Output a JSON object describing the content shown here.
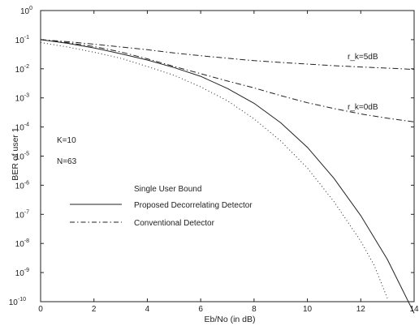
{
  "chart_data": {
    "type": "line",
    "title": "",
    "xlabel": "Eb/No (in dB)",
    "ylabel": "BER of user 1",
    "xlim": [
      0,
      14
    ],
    "ylim_exp": [
      -10,
      0
    ],
    "yscale": "log",
    "grid": false,
    "legend_placement": "center-left",
    "x_ticks": [
      "0",
      "2",
      "4",
      "6",
      "8",
      "10",
      "12",
      "14"
    ],
    "y_tick_exponents": [
      0,
      -1,
      -2,
      -3,
      -4,
      -5,
      -6,
      -7,
      -8,
      -9,
      -10
    ],
    "series": [
      {
        "name": "Single User Bound",
        "style": "dotted",
        "x": [
          0,
          1,
          2,
          3,
          4,
          5,
          6,
          7,
          8,
          9,
          10,
          11,
          12,
          12.5,
          13
        ],
        "y": [
          0.08,
          0.056,
          0.037,
          0.023,
          0.012,
          0.006,
          0.0024,
          0.0008,
          0.00019,
          3.3e-05,
          3.9e-06,
          2.7e-07,
          1.2e-08,
          1.8e-09,
          1.3e-10
        ]
      },
      {
        "name": "Proposed Decorrelating Detector",
        "style": "solid",
        "x": [
          0,
          1,
          2,
          3,
          4,
          5,
          6,
          7,
          8,
          9,
          10,
          11,
          12,
          13,
          14
        ],
        "y": [
          0.1,
          0.075,
          0.052,
          0.033,
          0.02,
          0.011,
          0.0055,
          0.0021,
          0.00065,
          0.00014,
          2e-05,
          1.7e-06,
          9e-08,
          2.8e-09,
          4e-11
        ]
      },
      {
        "name": "Conventional Detector (r_k=0dB)",
        "style": "dashdot",
        "x": [
          0,
          1,
          2,
          3,
          4,
          5,
          6,
          7,
          8,
          9,
          10,
          11,
          12,
          13,
          14
        ],
        "y": [
          0.1,
          0.079,
          0.058,
          0.038,
          0.022,
          0.012,
          0.0068,
          0.0038,
          0.0022,
          0.0012,
          0.00068,
          0.00043,
          0.00028,
          0.0002,
          0.00015
        ]
      },
      {
        "name": "Conventional Detector (r_k=5dB)",
        "style": "dashdot",
        "x": [
          0,
          1,
          2,
          3,
          4,
          5,
          6,
          7,
          8,
          9,
          10,
          11,
          12,
          13,
          14
        ],
        "y": [
          0.1,
          0.085,
          0.07,
          0.056,
          0.045,
          0.035,
          0.028,
          0.023,
          0.019,
          0.0165,
          0.0145,
          0.0128,
          0.0115,
          0.0105,
          0.0095
        ]
      }
    ],
    "annotations": {
      "r5": "r_k=5dB",
      "r0": "r_k=0dB",
      "k": "K=10",
      "n": "N=63"
    },
    "legend": [
      {
        "label": "Single User Bound",
        "style": "dotted"
      },
      {
        "label": "Proposed Decorrelating Detector",
        "style": "solid"
      },
      {
        "label": "Conventional Detector",
        "style": "dashdot"
      }
    ]
  }
}
